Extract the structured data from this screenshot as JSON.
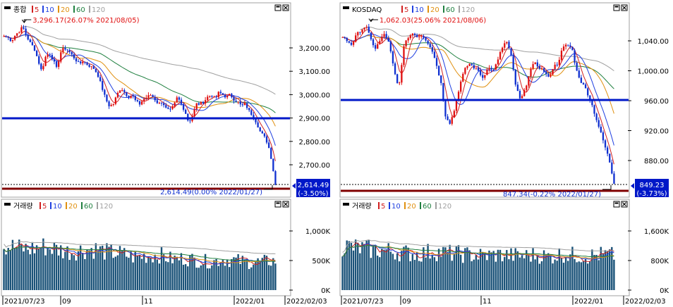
{
  "colors": {
    "up": "#e01010",
    "down": "#1030d0",
    "ma5": "#d02020",
    "ma10": "#2040e0",
    "ma20": "#e09010",
    "ma60": "#208040",
    "ma120": "#a0a0a0",
    "hline": "#0018c8",
    "baseline": "#800000",
    "volume": "#1a5278",
    "label_bg": "#0018c8"
  },
  "legend": {
    "ma_labels": [
      "5",
      "10",
      "20",
      "60",
      "120"
    ]
  },
  "icons": [
    "window-max-icon",
    "window-close-icon"
  ],
  "charts": [
    {
      "name": "kospi",
      "title": "종합",
      "high_annotation": "3,296.17(26.07% 2021/08/05)",
      "low_annotation": "2,614.49(0.00% 2022/01/27)",
      "current_value": "2,614.49",
      "current_change": "(-3.50%)",
      "y_ticks": [
        "3,200.00",
        "3,100.00",
        "3,000.00",
        "2,900.00",
        "2,800.00",
        "2,700.00"
      ],
      "volume_title": "거래량",
      "volume_ticks": [
        "1,000K",
        "500K",
        "0K"
      ]
    },
    {
      "name": "kosdaq",
      "title": "KOSDAQ",
      "high_annotation": "1,062.03(25.06% 2021/08/06)",
      "low_annotation": "847.34(-0.22% 2022/01/27)",
      "current_value": "849.23",
      "current_change": "(-3.73%)",
      "y_ticks": [
        "1,040.00",
        "1,000.00",
        "960.00",
        "920.00",
        "880.00"
      ],
      "volume_title": "거래량",
      "volume_ticks": [
        "1,600K",
        "800K",
        "0K"
      ]
    }
  ],
  "x_labels": [
    "2021/07/23",
    "09",
    "11",
    "2022/01",
    "2022/02/03"
  ],
  "chart_data": [
    {
      "type": "candlestick",
      "title": "종합",
      "x_start": "2021/07/23",
      "x_end": "2022/01/27",
      "ylim": [
        2600,
        3330
      ],
      "horizontal_line": 2900,
      "min_line": 2614.49,
      "high": 3296.17,
      "close": 2614.49,
      "close_path": [
        3250,
        3245,
        3230,
        3255,
        3270,
        3290,
        3250,
        3220,
        3200,
        3150,
        3100,
        3160,
        3180,
        3150,
        3110,
        3180,
        3200,
        3190,
        3170,
        3150,
        3130,
        3145,
        3130,
        3120,
        3110,
        3080,
        3030,
        2980,
        2950,
        2960,
        3000,
        3030,
        3010,
        2990,
        3000,
        2970,
        2960,
        2980,
        2990,
        3000,
        2980,
        2960,
        2970,
        2940,
        2930,
        2950,
        2990,
        2960,
        2930,
        2880,
        2910,
        2960,
        2960,
        2970,
        2990,
        3000,
        2980,
        3010,
        3000,
        2990,
        3000,
        2980,
        2970,
        2950,
        2960,
        2930,
        2910,
        2880,
        2840,
        2820,
        2790,
        2720,
        2614
      ]
    },
    {
      "type": "candlestick",
      "title": "KOSDAQ",
      "x_start": "2021/07/23",
      "x_end": "2022/01/27",
      "ylim": [
        840,
        1070
      ],
      "horizontal_line": 962,
      "min_line": 847.34,
      "high": 1062.03,
      "close": 849.23,
      "close_path": [
        1045,
        1040,
        1035,
        1048,
        1055,
        1060,
        1042,
        1030,
        1040,
        1050,
        1035,
        1000,
        975,
        1030,
        1045,
        1050,
        1046,
        1048,
        1040,
        1030,
        1010,
        985,
        940,
        930,
        950,
        980,
        1000,
        1010,
        1005,
        1000,
        990,
        1005,
        1000,
        1010,
        1030,
        1040,
        1020,
        980,
        960,
        975,
        1000,
        1010,
        1005,
        1000,
        990,
        1005,
        1010,
        1030,
        1035,
        1030,
        1000,
        985,
        975,
        960,
        940,
        920,
        900,
        880,
        849
      ]
    }
  ]
}
